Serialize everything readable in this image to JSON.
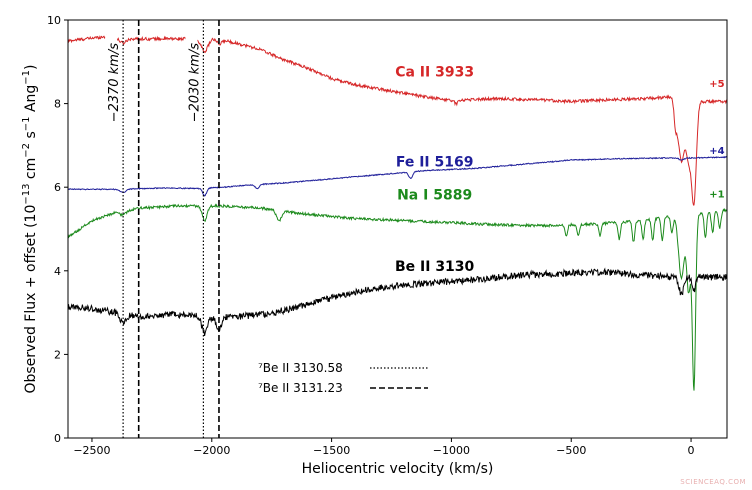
{
  "chart_data": {
    "type": "line",
    "xlabel": "Heliocentric velocity (km/s)",
    "ylabel": "Observed Flux + offset (10^{-13} cm^{-2} s^{-1} Ang^{-1})",
    "ylabel_parts": {
      "base": "Observed Flux + offset (10",
      "sup1": "−13",
      "mid1": " cm",
      "sup2": "−2",
      "mid2": " s",
      "sup3": "−1",
      "mid3": " Ang",
      "sup4": "−1",
      "end": ")"
    },
    "xlim": [
      -2600,
      150
    ],
    "ylim": [
      0,
      10
    ],
    "xticks": [
      -2500,
      -2000,
      -1500,
      -1000,
      -500,
      0
    ],
    "xtick_labels": [
      "−2500",
      "−2000",
      "−1500",
      "−1000",
      "−500",
      "0"
    ],
    "yticks": [
      0,
      2,
      4,
      6,
      8,
      10
    ],
    "ytick_labels": [
      "0",
      "2",
      "4",
      "6",
      "8",
      "10"
    ],
    "series": [
      {
        "name": "Ca II 3933",
        "offset_label": "+5",
        "color": "#d62728",
        "noise": 0.035,
        "base": [
          [
            -2600,
            9.5
          ],
          [
            -2450,
            9.6
          ],
          [
            -2400,
            9.55
          ],
          [
            -2300,
            9.55
          ],
          [
            -2150,
            9.55
          ],
          [
            -2050,
            9.55
          ],
          [
            -1980,
            9.55
          ],
          [
            -1900,
            9.45
          ],
          [
            -1800,
            9.3
          ],
          [
            -1700,
            9.05
          ],
          [
            -1600,
            8.85
          ],
          [
            -1500,
            8.6
          ],
          [
            -1400,
            8.45
          ],
          [
            -1300,
            8.35
          ],
          [
            -1200,
            8.25
          ],
          [
            -1100,
            8.15
          ],
          [
            -1000,
            8.08
          ],
          [
            -900,
            8.1
          ],
          [
            -800,
            8.12
          ],
          [
            -700,
            8.1
          ],
          [
            -600,
            8.08
          ],
          [
            -500,
            8.05
          ],
          [
            -400,
            8.08
          ],
          [
            -300,
            8.1
          ],
          [
            -200,
            8.12
          ],
          [
            -100,
            8.15
          ],
          [
            -50,
            8.15
          ],
          [
            0,
            8.1
          ],
          [
            50,
            8.05
          ],
          [
            150,
            8.05
          ]
        ],
        "absorptions": [
          {
            "x": -2370,
            "depth": 0.1,
            "width": 12
          },
          {
            "x": -2030,
            "depth": 0.3,
            "width": 14
          },
          {
            "x": -1970,
            "depth": 0.12,
            "width": 10
          },
          {
            "x": -980,
            "depth": 0.08,
            "width": 8
          },
          {
            "x": -65,
            "depth": 0.5,
            "width": 6
          },
          {
            "x": -40,
            "depth": 1.5,
            "width": 14
          },
          {
            "x": -10,
            "depth": 1.2,
            "width": 10
          },
          {
            "x": 12,
            "depth": 2.4,
            "width": 10
          }
        ]
      },
      {
        "name": "Fe II 5169",
        "offset_label": "+4",
        "color": "#1f1f9a",
        "noise": 0.012,
        "base": [
          [
            -2600,
            5.95
          ],
          [
            -2400,
            5.95
          ],
          [
            -2200,
            5.98
          ],
          [
            -2050,
            5.97
          ],
          [
            -1950,
            6.0
          ],
          [
            -1850,
            6.05
          ],
          [
            -1700,
            6.1
          ],
          [
            -1500,
            6.2
          ],
          [
            -1300,
            6.3
          ],
          [
            -1100,
            6.4
          ],
          [
            -900,
            6.45
          ],
          [
            -700,
            6.55
          ],
          [
            -500,
            6.65
          ],
          [
            -300,
            6.68
          ],
          [
            -100,
            6.7
          ],
          [
            0,
            6.7
          ],
          [
            150,
            6.72
          ]
        ],
        "absorptions": [
          {
            "x": -2370,
            "depth": 0.08,
            "width": 12
          },
          {
            "x": -2030,
            "depth": 0.18,
            "width": 8
          },
          {
            "x": -1810,
            "depth": 0.1,
            "width": 8
          },
          {
            "x": -1170,
            "depth": 0.15,
            "width": 8
          },
          {
            "x": -40,
            "depth": 0.05,
            "width": 10
          }
        ]
      },
      {
        "name": "Na I 5889",
        "offset_label": "+1",
        "color": "#1c8a1c",
        "noise": 0.03,
        "base": [
          [
            -2600,
            4.8
          ],
          [
            -2500,
            5.2
          ],
          [
            -2400,
            5.4
          ],
          [
            -2300,
            5.5
          ],
          [
            -2150,
            5.55
          ],
          [
            -2050,
            5.55
          ],
          [
            -1950,
            5.55
          ],
          [
            -1800,
            5.5
          ],
          [
            -1600,
            5.35
          ],
          [
            -1400,
            5.25
          ],
          [
            -1200,
            5.2
          ],
          [
            -1000,
            5.15
          ],
          [
            -800,
            5.1
          ],
          [
            -600,
            5.08
          ],
          [
            -400,
            5.12
          ],
          [
            -200,
            5.2
          ],
          [
            -100,
            5.3
          ],
          [
            0,
            5.35
          ],
          [
            150,
            5.45
          ]
        ],
        "absorptions": [
          {
            "x": -2370,
            "depth": 0.1,
            "width": 12
          },
          {
            "x": -2030,
            "depth": 0.35,
            "width": 10
          },
          {
            "x": -1720,
            "depth": 0.25,
            "width": 10
          },
          {
            "x": -520,
            "depth": 0.25,
            "width": 5
          },
          {
            "x": -470,
            "depth": 0.25,
            "width": 5
          },
          {
            "x": -380,
            "depth": 0.3,
            "width": 5
          },
          {
            "x": -300,
            "depth": 0.4,
            "width": 5
          },
          {
            "x": -240,
            "depth": 0.5,
            "width": 5
          },
          {
            "x": -200,
            "depth": 0.45,
            "width": 5
          },
          {
            "x": -160,
            "depth": 0.5,
            "width": 5
          },
          {
            "x": -120,
            "depth": 0.55,
            "width": 5
          },
          {
            "x": -80,
            "depth": 0.4,
            "width": 5
          },
          {
            "x": -40,
            "depth": 1.5,
            "width": 12
          },
          {
            "x": -10,
            "depth": 1.8,
            "width": 8
          },
          {
            "x": 12,
            "depth": 4.2,
            "width": 7
          },
          {
            "x": 60,
            "depth": 0.6,
            "width": 5
          },
          {
            "x": 90,
            "depth": 0.5,
            "width": 5
          },
          {
            "x": 120,
            "depth": 0.4,
            "width": 5
          }
        ]
      },
      {
        "name": "Be II 3130",
        "offset_label": "",
        "color": "#000000",
        "noise": 0.08,
        "base": [
          [
            -2600,
            3.15
          ],
          [
            -2500,
            3.1
          ],
          [
            -2400,
            3.0
          ],
          [
            -2300,
            2.9
          ],
          [
            -2200,
            2.95
          ],
          [
            -2100,
            2.95
          ],
          [
            -2000,
            2.9
          ],
          [
            -1900,
            2.9
          ],
          [
            -1800,
            2.95
          ],
          [
            -1700,
            3.05
          ],
          [
            -1600,
            3.2
          ],
          [
            -1500,
            3.35
          ],
          [
            -1400,
            3.5
          ],
          [
            -1300,
            3.6
          ],
          [
            -1200,
            3.65
          ],
          [
            -1100,
            3.7
          ],
          [
            -1000,
            3.75
          ],
          [
            -900,
            3.78
          ],
          [
            -800,
            3.85
          ],
          [
            -700,
            3.9
          ],
          [
            -600,
            3.92
          ],
          [
            -500,
            3.95
          ],
          [
            -400,
            3.97
          ],
          [
            -300,
            3.95
          ],
          [
            -200,
            3.9
          ],
          [
            -100,
            3.85
          ],
          [
            0,
            3.85
          ],
          [
            150,
            3.85
          ]
        ],
        "absorptions": [
          {
            "x": -2370,
            "depth": 0.2,
            "width": 12
          },
          {
            "x": -2030,
            "depth": 0.4,
            "width": 12
          },
          {
            "x": -1970,
            "depth": 0.3,
            "width": 10
          },
          {
            "x": -40,
            "depth": 0.4,
            "width": 10
          },
          {
            "x": 12,
            "depth": 0.3,
            "width": 8
          }
        ]
      }
    ],
    "vlines": [
      {
        "x": -2370,
        "style": "dotted"
      },
      {
        "x": -2305,
        "style": "dashed"
      },
      {
        "x": -2035,
        "style": "dotted"
      },
      {
        "x": -1970,
        "style": "dashed"
      }
    ],
    "vline_labels": [
      {
        "text": "−2370 km/s",
        "x": -2370
      },
      {
        "text": "−2030 km/s",
        "x": -2035
      }
    ],
    "legend": {
      "placement": "lower-center",
      "entries": [
        {
          "label": "⁷Be II 3130.58",
          "style": "dotted"
        },
        {
          "label": "⁷Be II 3131.23",
          "style": "dashed"
        }
      ]
    }
  },
  "watermark": "SCIENCEAQ.COM"
}
